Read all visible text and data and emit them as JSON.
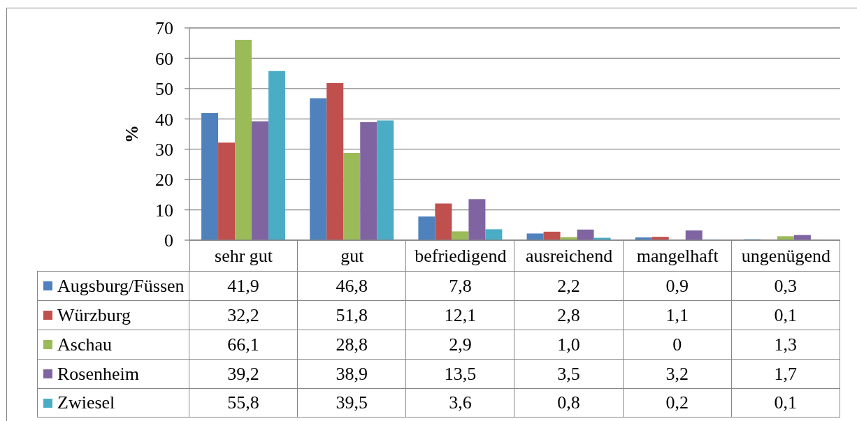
{
  "chart_data": {
    "type": "bar",
    "ylabel": "%",
    "categories": [
      "sehr gut",
      "gut",
      "befriedigend",
      "ausreichend",
      "mangelhaft",
      "ungenügend"
    ],
    "series": [
      {
        "name": "Augsburg/Füssen",
        "color": "#4f81bd",
        "values": [
          41.9,
          46.8,
          7.8,
          2.2,
          0.9,
          0.3
        ],
        "value_labels": [
          "41,9",
          "46,8",
          "7,8",
          "2,2",
          "0,9",
          "0,3"
        ]
      },
      {
        "name": "Würzburg",
        "color": "#c0504d",
        "values": [
          32.2,
          51.8,
          12.1,
          2.8,
          1.1,
          0.1
        ],
        "value_labels": [
          "32,2",
          "51,8",
          "12,1",
          "2,8",
          "1,1",
          "0,1"
        ]
      },
      {
        "name": "Aschau",
        "color": "#9bbb59",
        "values": [
          66.1,
          28.8,
          2.9,
          1.0,
          0,
          1.3
        ],
        "value_labels": [
          "66,1",
          "28,8",
          "2,9",
          "1,0",
          "0",
          "1,3"
        ]
      },
      {
        "name": "Rosenheim",
        "color": "#8064a2",
        "values": [
          39.2,
          38.9,
          13.5,
          3.5,
          3.2,
          1.7
        ],
        "value_labels": [
          "39,2",
          "38,9",
          "13,5",
          "3,5",
          "3,2",
          "1,7"
        ]
      },
      {
        "name": "Zwiesel",
        "color": "#4bacc6",
        "values": [
          55.8,
          39.5,
          3.6,
          0.8,
          0.2,
          0.1
        ],
        "value_labels": [
          "55,8",
          "39,5",
          "3,6",
          "0,8",
          "0,2",
          "0,1"
        ]
      }
    ],
    "ylim": [
      0,
      70
    ],
    "yticks": [
      0,
      10,
      20,
      30,
      40,
      50,
      60,
      70
    ],
    "grid": "y",
    "legend": "bottom"
  }
}
